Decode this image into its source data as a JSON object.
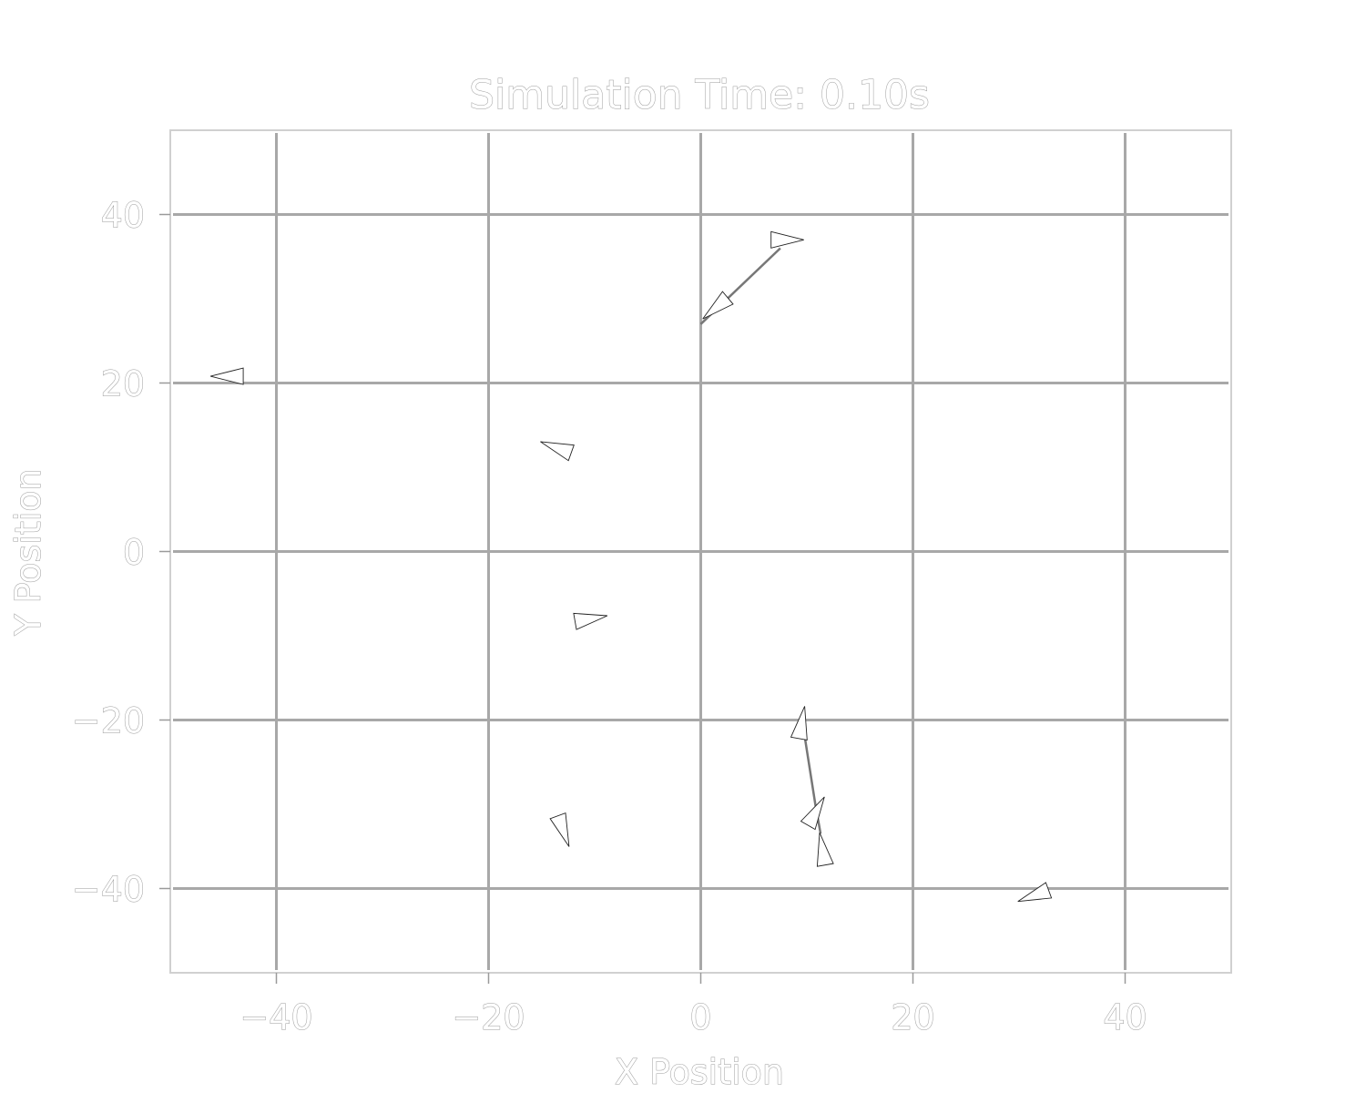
{
  "chart_data": {
    "type": "scatter",
    "title": "Simulation Time: 0.10s",
    "xlabel": "X Position",
    "ylabel": "Y Position",
    "xlim": [
      -50,
      50
    ],
    "ylim": [
      -50,
      50
    ],
    "xticks": [
      -40,
      -20,
      0,
      20,
      40
    ],
    "yticks": [
      -40,
      -20,
      0,
      20,
      40
    ],
    "xtick_labels": [
      "−40",
      "−20",
      "0",
      "20",
      "40"
    ],
    "ytick_labels": [
      "−40",
      "−20",
      "0",
      "20",
      "40"
    ],
    "grid": true,
    "marker": "triangle",
    "points": [
      {
        "x": 8.0,
        "y": 37.0,
        "heading_deg": 0
      },
      {
        "x": 1.5,
        "y": 29.0,
        "heading_deg": 220
      },
      {
        "x": -44.5,
        "y": 20.8,
        "heading_deg": 180
      },
      {
        "x": -13.5,
        "y": 12.3,
        "heading_deg": 160
      },
      {
        "x": -10.5,
        "y": -8.0,
        "heading_deg": 10
      },
      {
        "x": 9.5,
        "y": -20.5,
        "heading_deg": 80
      },
      {
        "x": 10.8,
        "y": -31.0,
        "heading_deg": 60
      },
      {
        "x": 11.5,
        "y": -35.5,
        "heading_deg": 100
      },
      {
        "x": -13.0,
        "y": -33.0,
        "heading_deg": 290
      },
      {
        "x": 31.5,
        "y": -40.8,
        "heading_deg": 200
      }
    ],
    "trails": [
      {
        "points": [
          [
            7.5,
            36.0
          ],
          [
            0.0,
            27.0
          ]
        ]
      },
      {
        "points": [
          [
            9.8,
            -22.0
          ],
          [
            10.8,
            -30.0
          ],
          [
            11.3,
            -33.5
          ]
        ]
      }
    ]
  }
}
